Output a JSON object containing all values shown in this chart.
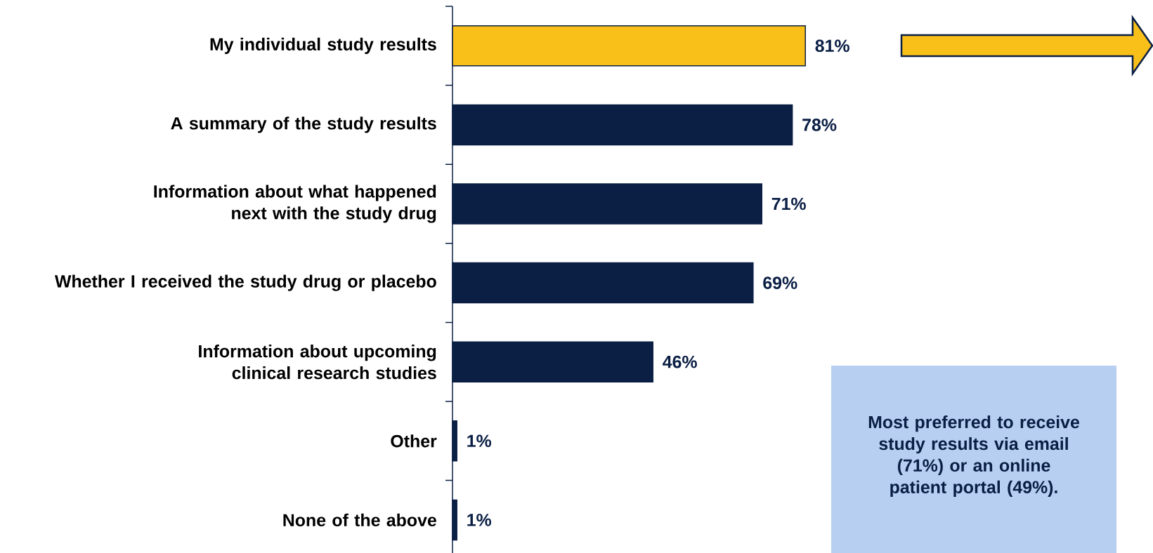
{
  "chart_data": {
    "type": "bar",
    "orientation": "horizontal",
    "categories": [
      "My individual study results",
      "A summary of the study results",
      "Information about what happened next with the study drug",
      "Whether I received the study drug or placebo",
      "Information about upcoming clinical research studies",
      "Other",
      "None of the above"
    ],
    "values": [
      81,
      78,
      71,
      69,
      46,
      1,
      1
    ],
    "value_labels": [
      "81%",
      "78%",
      "71%",
      "69%",
      "46%",
      "1%",
      "1%"
    ],
    "colors": [
      "#f9c01a",
      "#0b1f45",
      "#0b1f45",
      "#0b1f45",
      "#0b1f45",
      "#0b1f45",
      "#0b1f45"
    ],
    "annotations": [
      "Most preferred to receive study results via email (71%) or an online patient portal (49%)."
    ],
    "grid": false
  }
}
